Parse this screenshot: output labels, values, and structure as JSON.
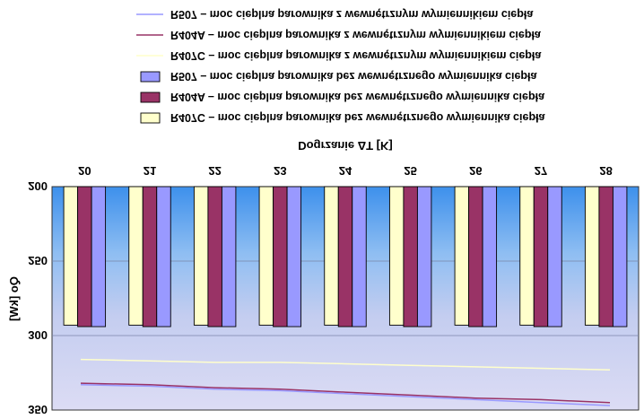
{
  "chart_data": {
    "type": "bar",
    "orientation": "mirrored-vertically",
    "xlabel": "Dogrzanie ΔT [K]",
    "ylabel": "Qo [kW]",
    "categories": [
      "20",
      "21",
      "22",
      "23",
      "24",
      "25",
      "26",
      "27",
      "28"
    ],
    "ylim": [
      200,
      350
    ],
    "yticks": [
      "200",
      "250",
      "300",
      "350"
    ],
    "grid": true,
    "legend_placement": "top",
    "series": [
      {
        "name": "R407C – moc cieplna parownika bez wewnętrznego wymiennika ciepła",
        "kind": "bar",
        "color": "#ffffcc",
        "values": [
          293,
          293,
          293,
          293,
          293,
          293,
          293,
          293,
          293
        ]
      },
      {
        "name": "R404A – moc cieplna parownika bez wewnętrznego wymiennika ciepła",
        "kind": "bar",
        "color": "#993366",
        "values": [
          294,
          294,
          294,
          294,
          294,
          294,
          294,
          294,
          294
        ]
      },
      {
        "name": "R507 – moc cieplna parownika bez wewnętrznego wymiennika ciepła",
        "kind": "bar",
        "color": "#9999ff",
        "values": [
          294,
          294,
          294,
          294,
          294,
          294,
          294,
          294,
          294
        ]
      },
      {
        "name": "R407C – moc cieplna parownika z wewnętrznym wymiennikiem ciepła",
        "kind": "line",
        "color": "#ffffcc",
        "values": [
          316,
          317,
          318,
          318,
          319,
          320,
          321,
          322,
          323
        ]
      },
      {
        "name": "R404A – moc cieplna parownika z wewnętrznym wymiennikiem ciepła",
        "kind": "line",
        "color": "#993366",
        "values": [
          332,
          333,
          335,
          336,
          338,
          340,
          342,
          343,
          345
        ]
      },
      {
        "name": "R507 – moc cieplna parownika z wewnętrznym wymiennikiem ciepła",
        "kind": "line",
        "color": "#9999ff",
        "values": [
          333,
          334,
          336,
          337,
          339,
          341,
          343,
          345,
          347
        ]
      }
    ]
  }
}
